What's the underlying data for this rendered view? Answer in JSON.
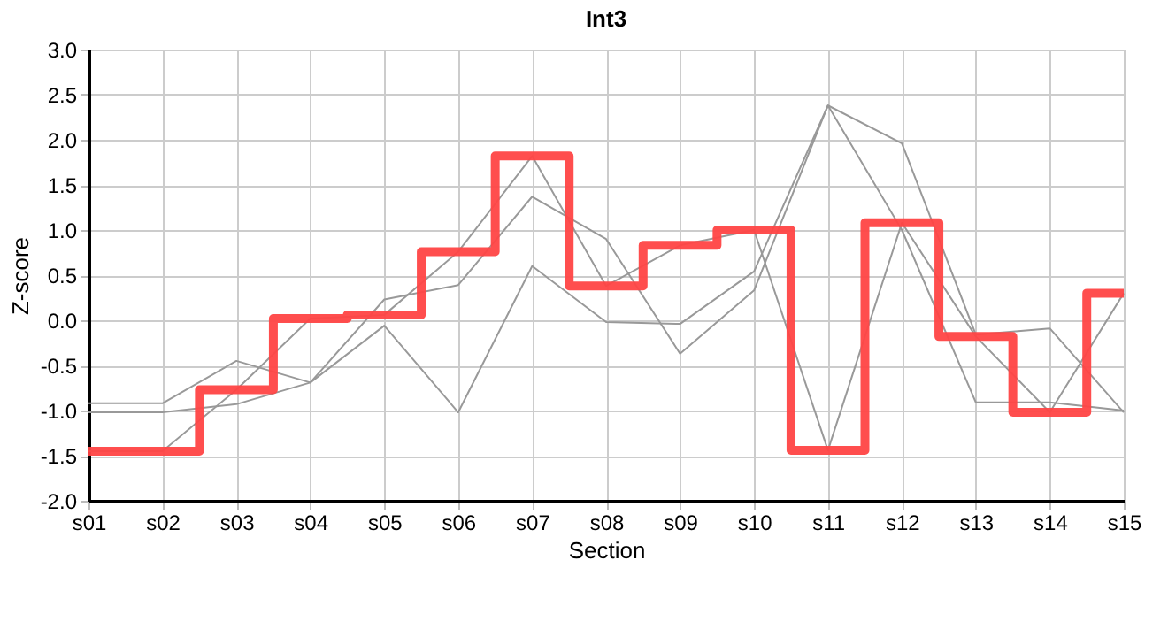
{
  "chart_data": {
    "type": "line",
    "title": "Int3",
    "xlabel": "Section",
    "ylabel": "Z-score",
    "categories": [
      "s01",
      "s02",
      "s03",
      "s04",
      "s05",
      "s06",
      "s07",
      "s08",
      "s09",
      "s10",
      "s11",
      "s12",
      "s13",
      "s14",
      "s15"
    ],
    "series": [
      {
        "color": "#999999",
        "values": [
          -0.92,
          -0.92,
          -0.45,
          -0.69,
          0.23,
          0.39,
          1.37,
          0.9,
          -0.37,
          0.33,
          2.38,
          1.96,
          -0.16,
          -0.09,
          -1.02
        ]
      },
      {
        "color": "#999999",
        "values": [
          -1.02,
          -1.02,
          -0.93,
          -0.69,
          -0.06,
          -1.02,
          0.6,
          -0.02,
          -0.04,
          0.54,
          2.38,
          1.0,
          -0.91,
          -0.91,
          -1.0
        ]
      },
      {
        "color": "#999999",
        "values": [
          -1.45,
          -1.45,
          -0.77,
          0.02,
          0.06,
          0.76,
          1.82,
          0.38,
          0.83,
          1.0,
          -1.44,
          1.08,
          -0.18,
          -1.02,
          0.3
        ]
      },
      {
        "type": "step",
        "color": "#ff4444",
        "values": [
          -1.45,
          -1.45,
          -0.77,
          0.02,
          0.06,
          0.76,
          1.82,
          0.38,
          0.83,
          1.0,
          -1.44,
          1.08,
          -0.18,
          -1.02,
          0.3
        ]
      }
    ],
    "ylim": [
      -2,
      3
    ],
    "yticks": [
      {
        "value": -2,
        "label": "-2.0"
      },
      {
        "value": -1.5,
        "label": "-1.5"
      },
      {
        "value": -1,
        "label": "-1.0"
      },
      {
        "value": -0.5,
        "label": "-0.5"
      },
      {
        "value": 0,
        "label": "0.0"
      },
      {
        "value": 0.5,
        "label": "0.5"
      },
      {
        "value": 1,
        "label": "1.0"
      },
      {
        "value": 1.5,
        "label": "1.5"
      },
      {
        "value": 2,
        "label": "2.0"
      },
      {
        "value": 2.5,
        "label": "2.5"
      },
      {
        "value": 3,
        "label": "3.0"
      }
    ],
    "grid": true,
    "marker": "none",
    "line_style": "solid"
  }
}
